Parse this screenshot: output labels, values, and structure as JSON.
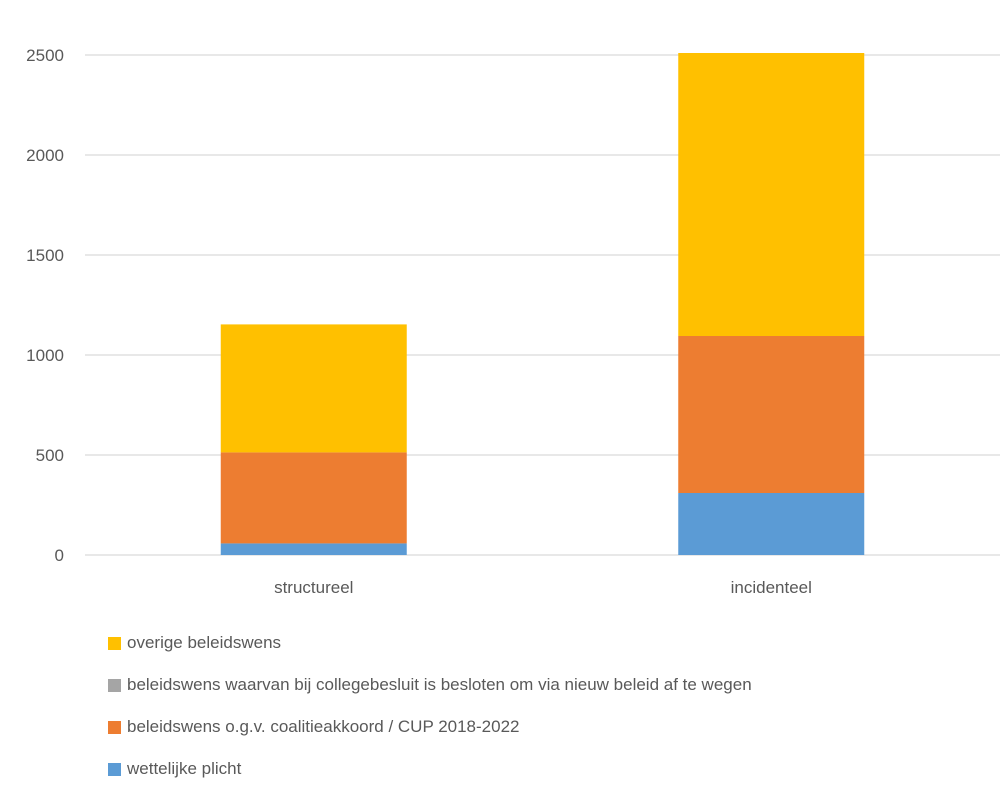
{
  "chart_data": {
    "type": "bar",
    "stacked": true,
    "categories": [
      "structureel",
      "incidenteel"
    ],
    "series": [
      {
        "name": "wettelijke plicht",
        "color": "#5B9BD5",
        "values": [
          58,
          310
        ]
      },
      {
        "name": "beleidswens o.g.v. coalitieakkoord / CUP 2018-2022",
        "color": "#ED7D31",
        "values": [
          455,
          785
        ]
      },
      {
        "name": "beleidswens waarvan bij collegebesluit is besloten om via nieuw beleid af te wegen",
        "color": "#A5A5A5",
        "values": [
          0,
          0
        ]
      },
      {
        "name": "overige beleidswens",
        "color": "#FFC000",
        "values": [
          640,
          1415
        ]
      }
    ],
    "yticks": [
      0,
      500,
      1000,
      1500,
      2000,
      2500
    ],
    "ylim": [
      0,
      2500
    ],
    "grid": true,
    "legend_position": "bottom",
    "title": "",
    "xlabel": "",
    "ylabel": ""
  }
}
